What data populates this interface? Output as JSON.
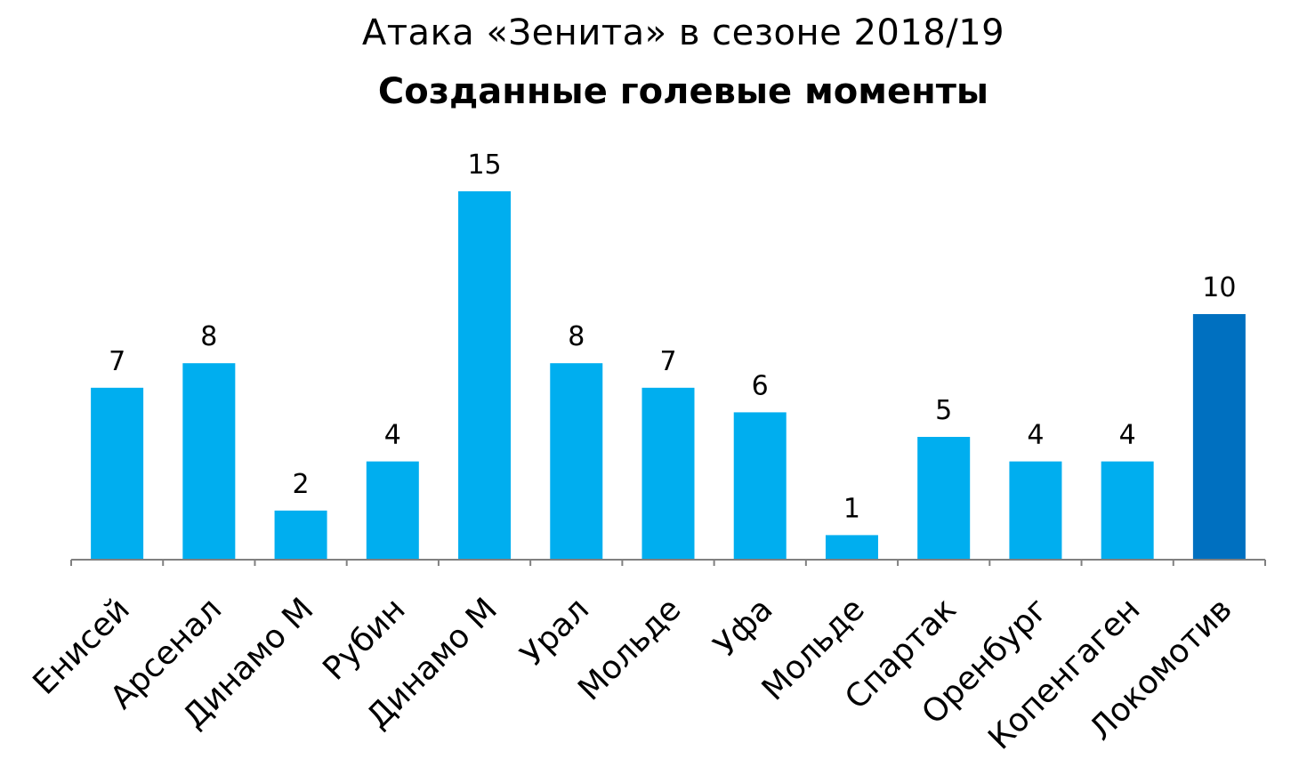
{
  "chart_data": {
    "type": "bar",
    "title": "Атака «Зенита» в сезоне 2018/19",
    "subtitle": "Созданные голевые моменты",
    "categories": [
      "Енисей",
      "Арсенал",
      "Динамо М",
      "Рубин",
      "Динамо М",
      "Урал",
      "Мольде",
      "Уфа",
      "Мольде",
      "Спартак",
      "Оренбург",
      "Копенгаген",
      "Локомотив"
    ],
    "values": [
      7,
      8,
      2,
      4,
      15,
      8,
      7,
      6,
      1,
      5,
      4,
      4,
      10
    ],
    "ylim": [
      0,
      15
    ],
    "grid": false,
    "data_labels": true,
    "colors": {
      "default": "#00AEEF",
      "highlight": "#0070C0",
      "axis": "#808080"
    },
    "highlight_index": 12
  }
}
